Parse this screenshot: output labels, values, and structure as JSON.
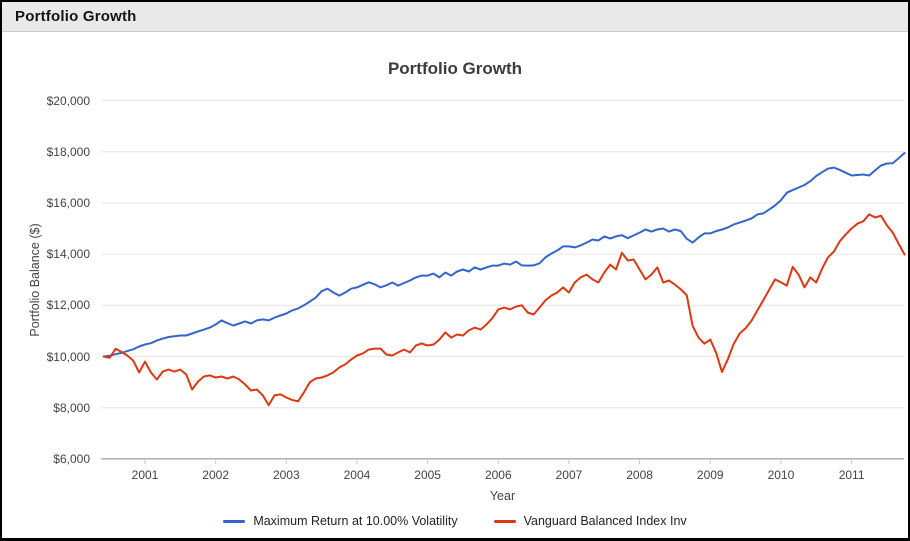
{
  "window": {
    "header_title": "Portfolio Growth"
  },
  "chart_data": {
    "type": "line",
    "title": "Portfolio Growth",
    "xlabel": "Year",
    "ylabel": "Portfolio Balance ($)",
    "ylim": [
      6000,
      20000
    ],
    "grid": true,
    "legend_position": "bottom",
    "y_ticks": [
      6000,
      8000,
      10000,
      12000,
      14000,
      16000,
      18000,
      20000
    ],
    "y_tick_labels": [
      "$6,000",
      "$8,000",
      "$10,000",
      "$12,000",
      "$14,000",
      "$16,000",
      "$18,000",
      "$20,000"
    ],
    "x_ticks": [
      2001,
      2002,
      2003,
      2004,
      2005,
      2006,
      2007,
      2008,
      2009,
      2010,
      2011
    ],
    "x_tick_labels": [
      "2001",
      "2002",
      "2003",
      "2004",
      "2005",
      "2006",
      "2007",
      "2008",
      "2009",
      "2010",
      "2011"
    ],
    "x_start_year": 2000.4167,
    "x_step_years": 0.08333,
    "x_note": "monthly data points, Jun 2000 through Oct 2011",
    "series": [
      {
        "name": "Maximum Return at 10.00% Volatility",
        "color": "#3366cc",
        "values": [
          10000,
          10030,
          10090,
          10140,
          10210,
          10280,
          10390,
          10470,
          10520,
          10620,
          10700,
          10760,
          10790,
          10820,
          10820,
          10900,
          10980,
          11050,
          11130,
          11250,
          11410,
          11300,
          11210,
          11290,
          11370,
          11290,
          11410,
          11450,
          11410,
          11520,
          11600,
          11680,
          11800,
          11880,
          12000,
          12150,
          12300,
          12550,
          12650,
          12500,
          12380,
          12500,
          12650,
          12700,
          12800,
          12900,
          12820,
          12700,
          12780,
          12890,
          12770,
          12870,
          12970,
          13090,
          13160,
          13160,
          13240,
          13090,
          13280,
          13160,
          13320,
          13400,
          13320,
          13480,
          13400,
          13480,
          13550,
          13550,
          13630,
          13590,
          13710,
          13560,
          13550,
          13560,
          13640,
          13870,
          14020,
          14140,
          14300,
          14300,
          14260,
          14340,
          14450,
          14570,
          14530,
          14690,
          14610,
          14690,
          14740,
          14620,
          14730,
          14840,
          14960,
          14880,
          14960,
          15000,
          14880,
          14960,
          14900,
          14600,
          14450,
          14650,
          14810,
          14810,
          14900,
          14960,
          15040,
          15160,
          15230,
          15310,
          15390,
          15550,
          15590,
          15740,
          15900,
          16100,
          16400,
          16500,
          16600,
          16700,
          16850,
          17050,
          17200,
          17340,
          17380,
          17290,
          17180,
          17070,
          17090,
          17110,
          17070,
          17270,
          17460,
          17540,
          17550,
          17750,
          17950
        ]
      },
      {
        "name": "Vanguard Balanced Index Inv",
        "color": "#dc3912",
        "values": [
          10000,
          9950,
          10300,
          10180,
          10040,
          9840,
          9380,
          9800,
          9380,
          9100,
          9410,
          9490,
          9410,
          9490,
          9300,
          8710,
          9020,
          9220,
          9260,
          9180,
          9220,
          9140,
          9220,
          9100,
          8910,
          8670,
          8710,
          8480,
          8100,
          8480,
          8520,
          8400,
          8300,
          8250,
          8600,
          9000,
          9140,
          9180,
          9260,
          9380,
          9570,
          9690,
          9880,
          10040,
          10120,
          10270,
          10310,
          10310,
          10080,
          10040,
          10160,
          10270,
          10160,
          10430,
          10510,
          10430,
          10470,
          10660,
          10940,
          10740,
          10860,
          10820,
          11020,
          11130,
          11050,
          11250,
          11500,
          11840,
          11910,
          11840,
          11950,
          12000,
          11720,
          11640,
          11910,
          12190,
          12380,
          12500,
          12700,
          12500,
          12890,
          13090,
          13200,
          13010,
          12890,
          13280,
          13590,
          13400,
          14050,
          13750,
          13790,
          13400,
          13010,
          13200,
          13480,
          12890,
          12970,
          12810,
          12620,
          12400,
          11200,
          10740,
          10500,
          10660,
          10150,
          9400,
          9900,
          10500,
          10900,
          11100,
          11400,
          11800,
          12200,
          12600,
          13010,
          12900,
          12770,
          13500,
          13200,
          12700,
          13090,
          12890,
          13430,
          13870,
          14100,
          14500,
          14770,
          15000,
          15190,
          15280,
          15550,
          15430,
          15500,
          15120,
          14840,
          14400,
          13980
        ]
      }
    ]
  }
}
